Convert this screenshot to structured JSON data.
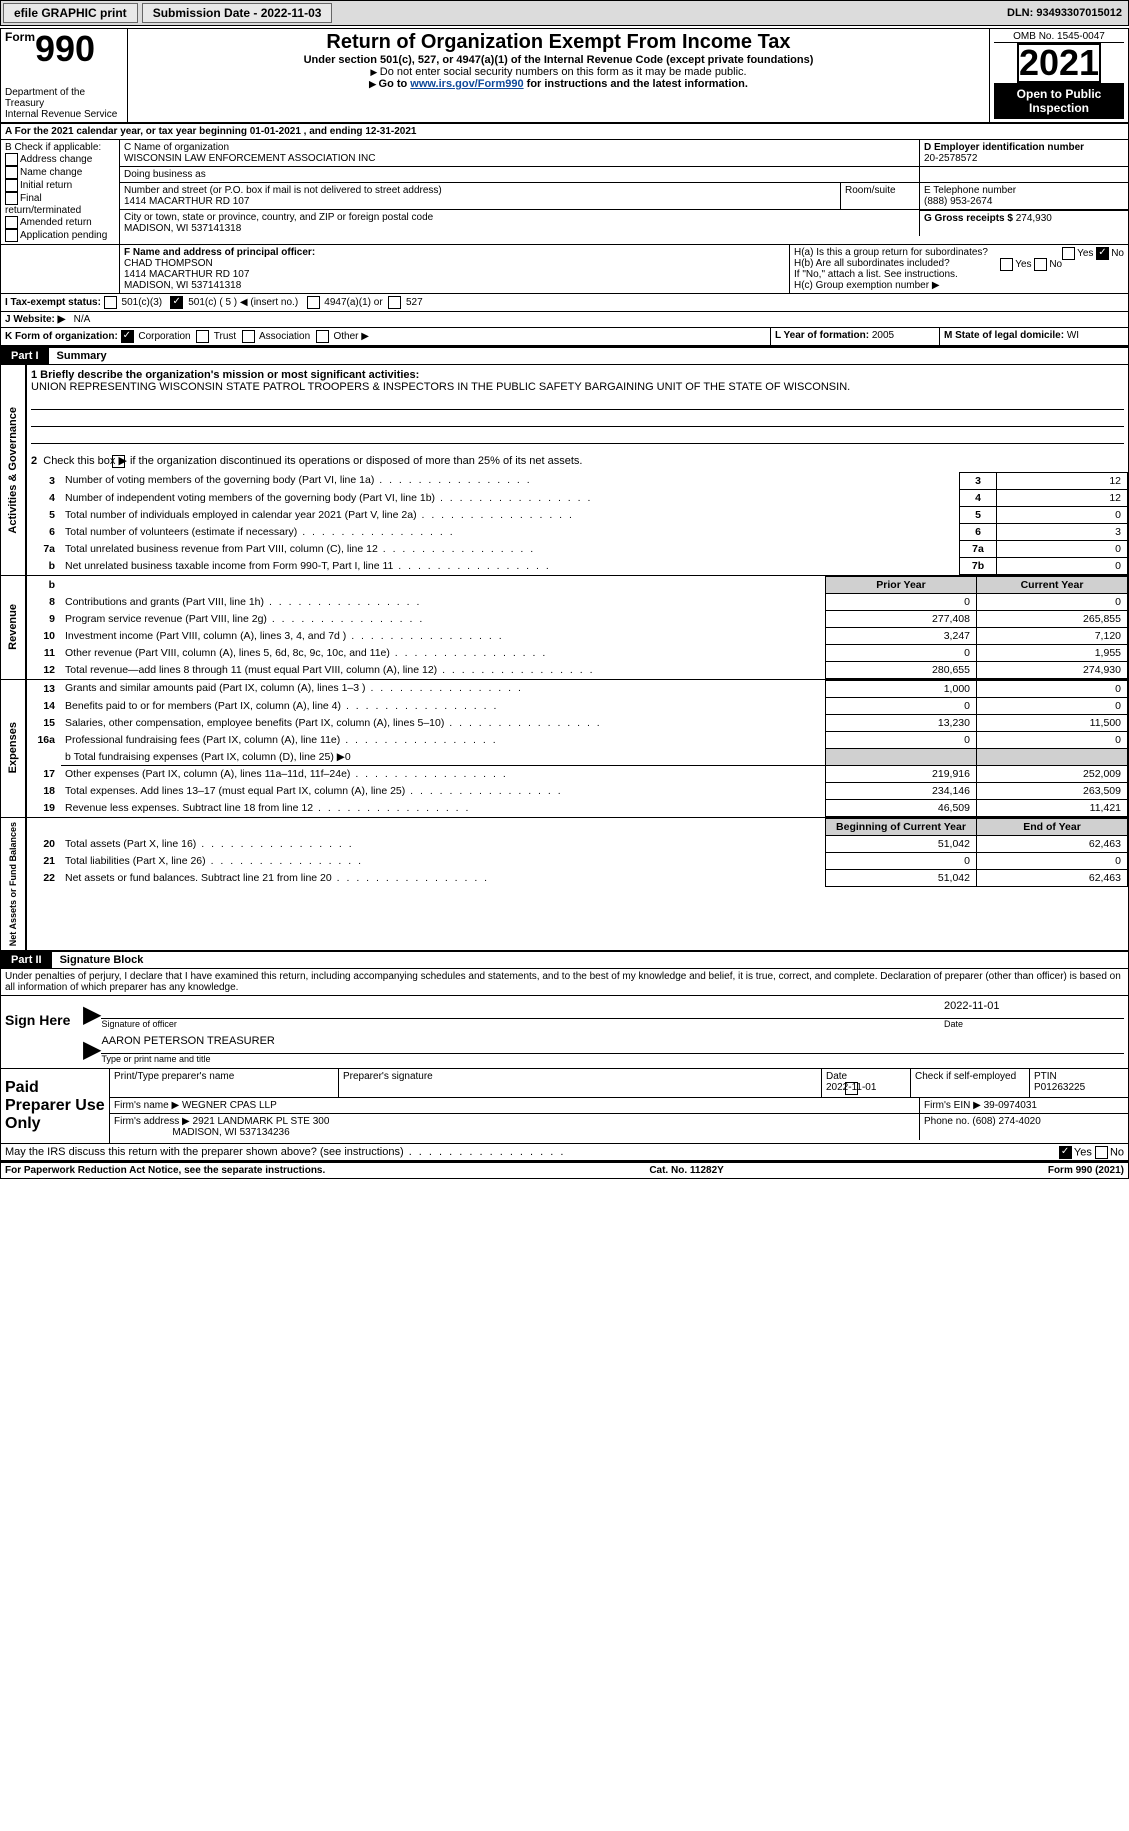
{
  "topbar": {
    "efile_print": "efile GRAPHIC print",
    "submission_label": "Submission Date - 2022-11-03",
    "dln_label": "DLN: 93493307015012"
  },
  "header": {
    "form_small": "Form",
    "form_num": "990",
    "title": "Return of Organization Exempt From Income Tax",
    "subtitle": "Under section 501(c), 527, or 4947(a)(1) of the Internal Revenue Code (except private foundations)",
    "note1": "Do not enter social security numbers on this form as it may be made public.",
    "note2_a": "Go to",
    "note2_link": "www.irs.gov/Form990",
    "note2_b": "for instructions and the latest information.",
    "dept": "Department of the Treasury",
    "irs": "Internal Revenue Service",
    "omb": "OMB No. 1545-0047",
    "year": "2021",
    "open": "Open to Public Inspection"
  },
  "line_a": "A For the 2021 calendar year, or tax year beginning 01-01-2021   , and ending 12-31-2021",
  "box_b": {
    "label": "B Check if applicable:",
    "opts": [
      "Address change",
      "Name change",
      "Initial return",
      "Final return/terminated",
      "Amended return",
      "Application pending"
    ]
  },
  "box_c": {
    "name_label": "C Name of organization",
    "name": "WISCONSIN LAW ENFORCEMENT ASSOCIATION INC",
    "dba_label": "Doing business as",
    "dba": "",
    "addr_label": "Number and street (or P.O. box if mail is not delivered to street address)",
    "room_label": "Room/suite",
    "addr": "1414 MACARTHUR RD 107",
    "city_label": "City or town, state or province, country, and ZIP or foreign postal code",
    "city": "MADISON, WI  537141318"
  },
  "box_d": {
    "label": "D Employer identification number",
    "value": "20-2578572"
  },
  "box_e": {
    "label": "E Telephone number",
    "value": "(888) 953-2674"
  },
  "box_g": {
    "label": "G Gross receipts $",
    "value": "274,930"
  },
  "box_f": {
    "label": "F Name and address of principal officer:",
    "name": "CHAD THOMPSON",
    "addr1": "1414 MACARTHUR RD 107",
    "addr2": "MADISON, WI  537141318"
  },
  "box_h": {
    "ha": "H(a)  Is this a group return for subordinates?",
    "hb": "H(b)  Are all subordinates included?",
    "hb_note": "If \"No,\" attach a list. See instructions.",
    "hc": "H(c)  Group exemption number ▶"
  },
  "box_i": {
    "label": "I  Tax-exempt status:",
    "c3": "501(c)(3)",
    "c5": "501(c) ( 5 ) ◀ (insert no.)",
    "a1": "4947(a)(1) or",
    "s527": "527"
  },
  "box_j": {
    "label": "J  Website: ▶",
    "value": "N/A"
  },
  "box_k": {
    "label": "K Form of organization:",
    "corp": "Corporation",
    "trust": "Trust",
    "assoc": "Association",
    "other": "Other ▶"
  },
  "box_l": {
    "label": "L Year of formation:",
    "value": "2005"
  },
  "box_m": {
    "label": "M State of legal domicile:",
    "value": "WI"
  },
  "part1": {
    "header": "Part I",
    "title": "Summary"
  },
  "summary": {
    "line1_label": "1  Briefly describe the organization's mission or most significant activities:",
    "line1_text": "UNION REPRESENTING WISCONSIN STATE PATROL TROOPERS & INSPECTORS IN THE PUBLIC SAFETY BARGAINING UNIT OF THE STATE OF WISCONSIN.",
    "line2": "Check this box ▶        if the organization discontinued its operations or disposed of more than 25% of its net assets.",
    "rows_a": [
      {
        "n": "3",
        "desc": "Number of voting members of the governing body (Part VI, line 1a)",
        "box": "3",
        "v": "12"
      },
      {
        "n": "4",
        "desc": "Number of independent voting members of the governing body (Part VI, line 1b)",
        "box": "4",
        "v": "12"
      },
      {
        "n": "5",
        "desc": "Total number of individuals employed in calendar year 2021 (Part V, line 2a)",
        "box": "5",
        "v": "0"
      },
      {
        "n": "6",
        "desc": "Total number of volunteers (estimate if necessary)",
        "box": "6",
        "v": "3"
      },
      {
        "n": "7a",
        "desc": "Total unrelated business revenue from Part VIII, column (C), line 12",
        "box": "7a",
        "v": "0"
      },
      {
        "n": "b",
        "desc": "Net unrelated business taxable income from Form 990-T, Part I, line 11",
        "box": "7b",
        "v": "0"
      }
    ],
    "col_prior": "Prior Year",
    "col_curr": "Current Year",
    "rev_rows": [
      {
        "n": "8",
        "desc": "Contributions and grants (Part VIII, line 1h)",
        "p": "0",
        "c": "0"
      },
      {
        "n": "9",
        "desc": "Program service revenue (Part VIII, line 2g)",
        "p": "277,408",
        "c": "265,855"
      },
      {
        "n": "10",
        "desc": "Investment income (Part VIII, column (A), lines 3, 4, and 7d )",
        "p": "3,247",
        "c": "7,120"
      },
      {
        "n": "11",
        "desc": "Other revenue (Part VIII, column (A), lines 5, 6d, 8c, 9c, 10c, and 11e)",
        "p": "0",
        "c": "1,955"
      },
      {
        "n": "12",
        "desc": "Total revenue—add lines 8 through 11 (must equal Part VIII, column (A), line 12)",
        "p": "280,655",
        "c": "274,930"
      }
    ],
    "exp_rows": [
      {
        "n": "13",
        "desc": "Grants and similar amounts paid (Part IX, column (A), lines 1–3 )",
        "p": "1,000",
        "c": "0"
      },
      {
        "n": "14",
        "desc": "Benefits paid to or for members (Part IX, column (A), line 4)",
        "p": "0",
        "c": "0"
      },
      {
        "n": "15",
        "desc": "Salaries, other compensation, employee benefits (Part IX, column (A), lines 5–10)",
        "p": "13,230",
        "c": "11,500"
      },
      {
        "n": "16a",
        "desc": "Professional fundraising fees (Part IX, column (A), line 11e)",
        "p": "0",
        "c": "0"
      }
    ],
    "line16b": "b   Total fundraising expenses (Part IX, column (D), line 25) ▶0",
    "exp_rows2": [
      {
        "n": "17",
        "desc": "Other expenses (Part IX, column (A), lines 11a–11d, 11f–24e)",
        "p": "219,916",
        "c": "252,009"
      },
      {
        "n": "18",
        "desc": "Total expenses. Add lines 13–17 (must equal Part IX, column (A), line 25)",
        "p": "234,146",
        "c": "263,509"
      },
      {
        "n": "19",
        "desc": "Revenue less expenses. Subtract line 18 from line 12",
        "p": "46,509",
        "c": "11,421"
      }
    ],
    "col_begin": "Beginning of Current Year",
    "col_end": "End of Year",
    "net_rows": [
      {
        "n": "20",
        "desc": "Total assets (Part X, line 16)",
        "p": "51,042",
        "c": "62,463"
      },
      {
        "n": "21",
        "desc": "Total liabilities (Part X, line 26)",
        "p": "0",
        "c": "0"
      },
      {
        "n": "22",
        "desc": "Net assets or fund balances. Subtract line 21 from line 20",
        "p": "51,042",
        "c": "62,463"
      }
    ]
  },
  "side_labels": {
    "gov": "Activities & Governance",
    "rev": "Revenue",
    "exp": "Expenses",
    "net": "Net Assets or Fund Balances"
  },
  "part2": {
    "header": "Part II",
    "title": "Signature Block"
  },
  "penalties": "Under penalties of perjury, I declare that I have examined this return, including accompanying schedules and statements, and to the best of my knowledge and belief, it is true, correct, and complete. Declaration of preparer (other than officer) is based on all information of which preparer has any knowledge.",
  "sign": {
    "here": "Sign Here",
    "sig_officer": "Signature of officer",
    "date": "2022-11-01",
    "name": "AARON PETERSON  TREASURER",
    "type_label": "Type or print name and title"
  },
  "paid": {
    "label": "Paid Preparer Use Only",
    "h1": "Print/Type preparer's name",
    "h2": "Preparer's signature",
    "h3": "Date",
    "date": "2022-11-01",
    "h4": "Check        if self-employed",
    "h5": "PTIN",
    "ptin": "P01263225",
    "firm_label": "Firm's name    ▶",
    "firm_name": "WEGNER CPAS LLP",
    "ein_label": "Firm's EIN ▶",
    "ein": "39-0974031",
    "addr_label": "Firm's address ▶",
    "addr1": "2921 LANDMARK PL STE 300",
    "addr2": "MADISON, WI  537134236",
    "phone_label": "Phone no.",
    "phone": "(608) 274-4020"
  },
  "discuss": "May the IRS discuss this return with the preparer shown above? (see instructions)",
  "footer": {
    "left": "For Paperwork Reduction Act Notice, see the separate instructions.",
    "mid": "Cat. No. 11282Y",
    "right": "Form 990 (2021)"
  }
}
